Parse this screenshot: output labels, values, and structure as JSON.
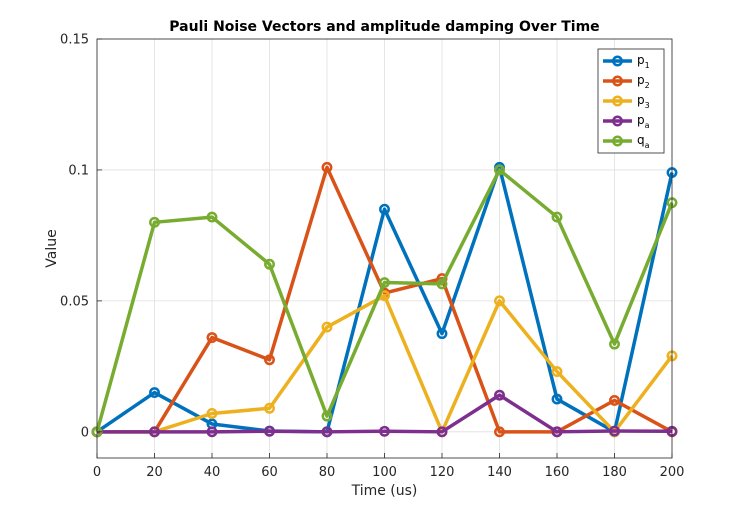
{
  "chart_data": {
    "type": "line",
    "title": "Pauli Noise Vectors and amplitude damping Over Time",
    "xlabel": "Time (us)",
    "ylabel": "Value",
    "xlim": [
      0,
      200
    ],
    "ylim": [
      -0.01,
      0.15
    ],
    "xticks": [
      0,
      20,
      40,
      60,
      80,
      100,
      120,
      140,
      160,
      180,
      200
    ],
    "xtick_labels": [
      "0",
      "20",
      "40",
      "60",
      "80",
      "100",
      "120",
      "140",
      "160",
      "180",
      "200"
    ],
    "yticks": [
      0,
      0.05,
      0.1,
      0.15
    ],
    "ytick_labels": [
      "0",
      "0.05",
      "0.1",
      "0.15"
    ],
    "grid": true,
    "legend_position": "top-right",
    "x": [
      0,
      20,
      40,
      60,
      80,
      100,
      120,
      140,
      160,
      180,
      200
    ],
    "series": [
      {
        "name": "p",
        "sub": "1",
        "color": "#0072BD",
        "values": [
          0,
          0.015,
          0.003,
          0.0003,
          0,
          0.085,
          0.0375,
          0.101,
          0.0125,
          0,
          0.099
        ]
      },
      {
        "name": "p",
        "sub": "2",
        "color": "#D95319",
        "values": [
          0,
          0,
          0.036,
          0.0275,
          0.101,
          0.053,
          0.0585,
          0,
          0,
          0.012,
          0
        ]
      },
      {
        "name": "p",
        "sub": "3",
        "color": "#EDB120",
        "values": [
          0,
          0,
          0.007,
          0.009,
          0.04,
          0.052,
          0,
          0.05,
          0.023,
          0,
          0.029
        ]
      },
      {
        "name": "p",
        "sub": "a",
        "color": "#7E2F8E",
        "values": [
          0,
          0,
          0,
          0.0002,
          0,
          0.0002,
          0,
          0.014,
          0,
          0.0003,
          0.0002
        ]
      },
      {
        "name": "q",
        "sub": "a",
        "color": "#77AC30",
        "values": [
          0,
          0.08,
          0.082,
          0.064,
          0.006,
          0.057,
          0.0565,
          0.1,
          0.082,
          0.0335,
          0.0875
        ]
      }
    ]
  }
}
